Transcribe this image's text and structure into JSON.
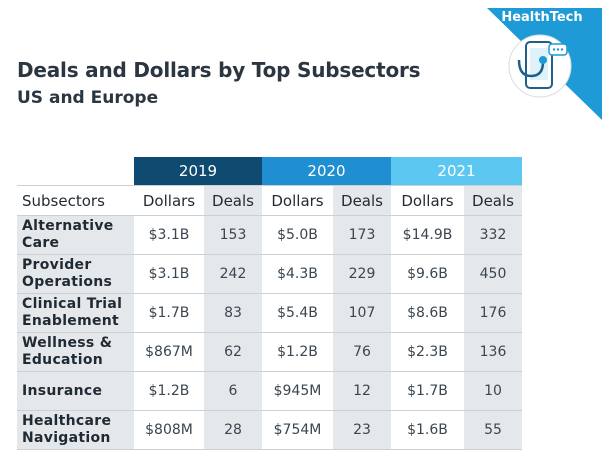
{
  "brand": {
    "label": "HealthTech"
  },
  "colors": {
    "y2019": "#0f4a70",
    "y2020": "#1f8fd1",
    "y2021": "#5cc8f2",
    "shade": "#e5e8eb"
  },
  "chart_data": {
    "type": "table",
    "title": "Deals and Dollars by Top Subsectors",
    "subtitle": "US and Europe",
    "years": [
      "2019",
      "2020",
      "2021"
    ],
    "columns": [
      "Subsectors",
      "Dollars",
      "Deals",
      "Dollars",
      "Deals",
      "Dollars",
      "Deals"
    ],
    "rows": [
      {
        "name": "Alternative Care",
        "values": [
          "$3.1B",
          "153",
          "$5.0B",
          "173",
          "$14.9B",
          "332"
        ]
      },
      {
        "name": "Provider Operations",
        "values": [
          "$3.1B",
          "242",
          "$4.3B",
          "229",
          "$9.6B",
          "450"
        ]
      },
      {
        "name": "Clinical Trial Enablement",
        "values": [
          "$1.7B",
          "83",
          "$5.4B",
          "107",
          "$8.6B",
          "176"
        ]
      },
      {
        "name": "Wellness & Education",
        "values": [
          "$867M",
          "62",
          "$1.2B",
          "76",
          "$2.3B",
          "136"
        ]
      },
      {
        "name": "Insurance",
        "values": [
          "$1.2B",
          "6",
          "$945M",
          "12",
          "$1.7B",
          "10"
        ]
      },
      {
        "name": "Healthcare Navigation",
        "values": [
          "$808M",
          "28",
          "$754M",
          "23",
          "$1.6B",
          "55"
        ]
      }
    ]
  }
}
